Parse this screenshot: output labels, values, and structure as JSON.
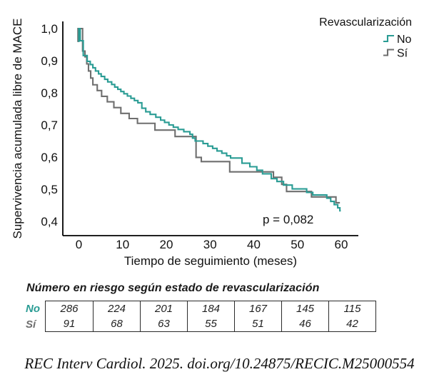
{
  "colors": {
    "axis": "#000000",
    "text": "#111111",
    "curve_no": "#2a9c94",
    "curve_si": "#6f6f6f"
  },
  "chart_data": {
    "type": "line",
    "subtype": "kaplan-meier-step",
    "title": "",
    "xlabel": "Tiempo de seguimiento (meses)",
    "ylabel": "Supervivencia acumulada libre de MACE",
    "xlim": [
      0,
      60
    ],
    "ylim": [
      0.4,
      1.0
    ],
    "grid": false,
    "xticks": [
      {
        "v": 0,
        "label": "0"
      },
      {
        "v": 10,
        "label": "10"
      },
      {
        "v": 20,
        "label": "20"
      },
      {
        "v": 30,
        "label": "30"
      },
      {
        "v": 40,
        "label": "40"
      },
      {
        "v": 50,
        "label": "50"
      },
      {
        "v": 60,
        "label": "60"
      }
    ],
    "yticks": [
      {
        "v": 1.0,
        "label": "1,0"
      },
      {
        "v": 0.9,
        "label": "0,9"
      },
      {
        "v": 0.8,
        "label": "0,8"
      },
      {
        "v": 0.7,
        "label": "0,7"
      },
      {
        "v": 0.6,
        "label": "0,6"
      },
      {
        "v": 0.5,
        "label": "0,5"
      },
      {
        "v": 0.4,
        "label": "0,4"
      }
    ],
    "legend": {
      "title": "Revascularización",
      "position": "top-right",
      "entries": [
        {
          "label": "No",
          "color": "#2a9c94"
        },
        {
          "label": "Sí",
          "color": "#6f6f6f"
        }
      ]
    },
    "annotation": {
      "text": "p = 0,082"
    },
    "series": [
      {
        "name": "Sí",
        "color": "#6f6f6f",
        "notch_s": 0.958,
        "end_t": 59.7,
        "steps": [
          [
            -0.2,
            1.0
          ],
          [
            0.85,
            0.93
          ],
          [
            1.4,
            0.912
          ],
          [
            1.8,
            0.89
          ],
          [
            2.2,
            0.868
          ],
          [
            2.7,
            0.846
          ],
          [
            3.2,
            0.825
          ],
          [
            4.2,
            0.807
          ],
          [
            5.2,
            0.789
          ],
          [
            6.5,
            0.772
          ],
          [
            8.0,
            0.754
          ],
          [
            9.6,
            0.736
          ],
          [
            11.5,
            0.72
          ],
          [
            13.4,
            0.705
          ],
          [
            17.4,
            0.684
          ],
          [
            22.0,
            0.664
          ],
          [
            26.8,
            0.599
          ],
          [
            28.0,
            0.586
          ],
          [
            34.5,
            0.554
          ],
          [
            44.5,
            0.537
          ],
          [
            46.4,
            0.515
          ],
          [
            47.5,
            0.493
          ],
          [
            53.2,
            0.476
          ],
          [
            58.8,
            0.458
          ]
        ]
      },
      {
        "name": "No",
        "color": "#2a9c94",
        "notch_s": 0.958,
        "end_t": 59.9,
        "steps": [
          [
            0,
            1.0
          ],
          [
            0.3,
            0.962
          ],
          [
            1.0,
            0.916
          ],
          [
            1.9,
            0.898
          ],
          [
            2.6,
            0.888
          ],
          [
            3.2,
            0.878
          ],
          [
            3.8,
            0.868
          ],
          [
            4.5,
            0.859
          ],
          [
            5.1,
            0.851
          ],
          [
            5.9,
            0.842
          ],
          [
            6.6,
            0.834
          ],
          [
            7.5,
            0.826
          ],
          [
            8.2,
            0.818
          ],
          [
            8.9,
            0.811
          ],
          [
            9.6,
            0.804
          ],
          [
            10.3,
            0.797
          ],
          [
            11.1,
            0.79
          ],
          [
            11.9,
            0.783
          ],
          [
            12.7,
            0.776
          ],
          [
            13.5,
            0.769
          ],
          [
            14.4,
            0.752
          ],
          [
            15.3,
            0.741
          ],
          [
            16.3,
            0.733
          ],
          [
            17.6,
            0.724
          ],
          [
            18.7,
            0.715
          ],
          [
            19.6,
            0.708
          ],
          [
            20.6,
            0.7
          ],
          [
            21.6,
            0.693
          ],
          [
            22.7,
            0.686
          ],
          [
            24.0,
            0.679
          ],
          [
            25.4,
            0.671
          ],
          [
            26.0,
            0.659
          ],
          [
            26.6,
            0.65
          ],
          [
            28.4,
            0.642
          ],
          [
            29.5,
            0.634
          ],
          [
            30.6,
            0.627
          ],
          [
            31.6,
            0.619
          ],
          [
            32.7,
            0.612
          ],
          [
            33.8,
            0.604
          ],
          [
            34.7,
            0.597
          ],
          [
            37.3,
            0.581
          ],
          [
            39.1,
            0.57
          ],
          [
            40.7,
            0.559
          ],
          [
            42.0,
            0.548
          ],
          [
            44.0,
            0.533
          ],
          [
            45.3,
            0.524
          ],
          [
            46.8,
            0.513
          ],
          [
            48.8,
            0.501
          ],
          [
            52.1,
            0.49
          ],
          [
            53.5,
            0.482
          ],
          [
            56.7,
            0.472
          ],
          [
            57.6,
            0.462
          ],
          [
            58.4,
            0.452
          ],
          [
            59.2,
            0.442
          ],
          [
            59.7,
            0.433
          ]
        ]
      }
    ]
  },
  "risk_table": {
    "title": "Número en riesgo según estado de revascularización",
    "rows": [
      {
        "label": "No",
        "color": "#2a9c94",
        "values": [
          "286",
          "224",
          "201",
          "184",
          "167",
          "145",
          "115"
        ]
      },
      {
        "label": "Sí",
        "color": "#6f6f6f",
        "values": [
          "91",
          "68",
          "63",
          "55",
          "51",
          "46",
          "42"
        ]
      }
    ]
  },
  "citation": "REC Interv Cardiol. 2025. doi.org/10.24875/RECIC.M25000554"
}
